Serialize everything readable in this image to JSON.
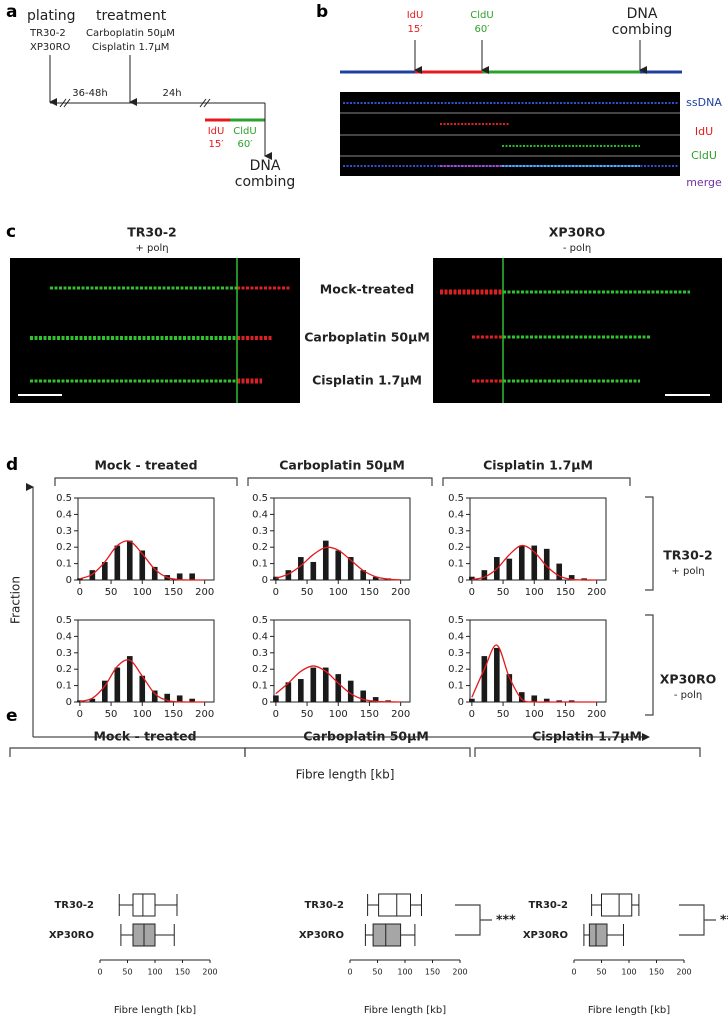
{
  "panel_labels": [
    "a",
    "b",
    "c",
    "d",
    "e"
  ],
  "panel_a": {
    "plating": "plating",
    "cell_lines": [
      "TR30-2",
      "XP30RO"
    ],
    "treatment": "treatment",
    "drugs": [
      "Carboplatin 50μM",
      "Cisplatin 1.7μM"
    ],
    "interval_1": "36-48h",
    "interval_2": "24h",
    "idu": "IdU",
    "idu_time": "15′",
    "cldu": "CldU",
    "cldu_time": "60′",
    "combing": [
      "DNA",
      "combing"
    ]
  },
  "panel_b": {
    "idu": "IdU",
    "idu_time": "15′",
    "cldu": "CldU",
    "cldu_time": "60′",
    "combing": [
      "DNA",
      "combing"
    ],
    "channels": [
      "ssDNA",
      "IdU",
      "CldU",
      "merge"
    ]
  },
  "panel_c": {
    "left_title": "TR30-2",
    "left_sub": "+ polη",
    "right_title": "XP30RO",
    "right_sub": "- polη",
    "conditions": [
      "Mock-treated",
      "Carboplatin 50μM",
      "Cisplatin 1.7μM"
    ]
  },
  "panel_d": {
    "conditions": [
      "Mock - treated",
      "Carboplatin 50μM",
      "Cisplatin 1.7μM"
    ],
    "rows": [
      {
        "title": "TR30-2",
        "sub": "+ polη"
      },
      {
        "title": "XP30RO",
        "sub": "- polη"
      }
    ],
    "y_label": "Fraction",
    "x_label": "Fibre length [kb]"
  },
  "chart_data": [
    {
      "type": "bar",
      "x": [
        0,
        20,
        40,
        60,
        80,
        100,
        120,
        140,
        160,
        180
      ],
      "values": [
        0.01,
        0.06,
        0.11,
        0.21,
        0.24,
        0.18,
        0.08,
        0.03,
        0.04,
        0.04
      ],
      "color": "#1a1a1a",
      "fit": {
        "x": [
          0,
          20,
          40,
          60,
          80,
          100,
          120,
          140,
          160,
          180,
          200
        ],
        "values": [
          0.007,
          0.035,
          0.11,
          0.21,
          0.236,
          0.16,
          0.066,
          0.016,
          0.002,
          0,
          0
        ],
        "color": "#e41a1c"
      },
      "xlim": [
        -3,
        215
      ],
      "ylim": [
        0,
        0.5
      ],
      "xticks": [
        0,
        50,
        100,
        150,
        200
      ],
      "yticks": [
        0,
        0.1,
        0.2,
        0.3,
        0.4,
        0.5
      ]
    },
    {
      "type": "bar",
      "x": [
        0,
        20,
        40,
        60,
        80,
        100,
        120,
        140,
        160,
        180
      ],
      "values": [
        0.02,
        0.06,
        0.14,
        0.11,
        0.24,
        0.18,
        0.14,
        0.06,
        0.02,
        0.01
      ],
      "color": "#1a1a1a",
      "fit": {
        "x": [
          0,
          20,
          40,
          60,
          80,
          100,
          120,
          140,
          160,
          180,
          200
        ],
        "values": [
          0.01,
          0.036,
          0.087,
          0.155,
          0.198,
          0.182,
          0.121,
          0.058,
          0.02,
          0.005,
          0.001
        ],
        "color": "#e41a1c"
      },
      "xlim": [
        -3,
        215
      ],
      "ylim": [
        0,
        0.5
      ],
      "xticks": [
        0,
        50,
        100,
        150,
        200
      ],
      "yticks": [
        0,
        0.1,
        0.2,
        0.3,
        0.4,
        0.5
      ]
    },
    {
      "type": "bar",
      "x": [
        0,
        20,
        40,
        60,
        80,
        100,
        120,
        140,
        160,
        180
      ],
      "values": [
        0.02,
        0.06,
        0.14,
        0.13,
        0.21,
        0.21,
        0.19,
        0.1,
        0.03,
        0.01
      ],
      "color": "#1a1a1a",
      "fit": {
        "x": [
          0,
          20,
          40,
          60,
          80,
          100,
          120,
          140,
          160,
          180,
          200
        ],
        "values": [
          0.003,
          0.018,
          0.068,
          0.154,
          0.21,
          0.171,
          0.084,
          0.025,
          0.004,
          0,
          0
        ],
        "color": "#e41a1c"
      },
      "xlim": [
        -3,
        215
      ],
      "ylim": [
        0,
        0.5
      ],
      "xticks": [
        0,
        50,
        100,
        150,
        200
      ],
      "yticks": [
        0,
        0.1,
        0.2,
        0.3,
        0.4,
        0.5
      ]
    },
    {
      "type": "bar",
      "x": [
        0,
        20,
        40,
        60,
        80,
        100,
        120,
        140,
        160,
        180
      ],
      "values": [
        0.01,
        0.02,
        0.13,
        0.21,
        0.28,
        0.16,
        0.07,
        0.05,
        0.04,
        0.02
      ],
      "color": "#1a1a1a",
      "fit": {
        "x": [
          0,
          20,
          40,
          60,
          80,
          100,
          120,
          140,
          160,
          180,
          200
        ],
        "values": [
          0.003,
          0.023,
          0.098,
          0.217,
          0.255,
          0.158,
          0.051,
          0.009,
          0.001,
          0,
          0
        ],
        "color": "#e41a1c"
      },
      "xlim": [
        -3,
        215
      ],
      "ylim": [
        0,
        0.5
      ],
      "xticks": [
        0,
        50,
        100,
        150,
        200
      ],
      "yticks": [
        0,
        0.1,
        0.2,
        0.3,
        0.4,
        0.5
      ]
    },
    {
      "type": "bar",
      "x": [
        0,
        20,
        40,
        60,
        80,
        100,
        120,
        140,
        160,
        180
      ],
      "values": [
        0.04,
        0.12,
        0.14,
        0.21,
        0.21,
        0.17,
        0.13,
        0.07,
        0.03,
        0.01
      ],
      "color": "#1a1a1a",
      "fit": {
        "x": [
          0,
          20,
          40,
          60,
          80,
          100,
          120,
          140,
          160,
          180,
          200
        ],
        "values": [
          0.051,
          0.115,
          0.187,
          0.22,
          0.187,
          0.115,
          0.051,
          0.016,
          0.004,
          0.001,
          0
        ],
        "color": "#e41a1c"
      },
      "xlim": [
        -3,
        215
      ],
      "ylim": [
        0,
        0.5
      ],
      "xticks": [
        0,
        50,
        100,
        150,
        200
      ],
      "yticks": [
        0,
        0.1,
        0.2,
        0.3,
        0.4,
        0.5
      ]
    },
    {
      "type": "bar",
      "x": [
        0,
        20,
        40,
        60,
        80,
        100,
        120,
        140,
        160,
        180
      ],
      "values": [
        0.02,
        0.28,
        0.33,
        0.17,
        0.06,
        0.04,
        0.02,
        0.01,
        0.01,
        0
      ],
      "color": "#1a1a1a",
      "fit": {
        "x": [
          0,
          20,
          40,
          60,
          80,
          100,
          120,
          140,
          160,
          180,
          200
        ],
        "values": [
          0.029,
          0.2,
          0.347,
          0.151,
          0.017,
          0.001,
          0,
          0,
          0,
          0,
          0
        ],
        "color": "#e41a1c"
      },
      "xlim": [
        -3,
        215
      ],
      "ylim": [
        0,
        0.5
      ],
      "xticks": [
        0,
        50,
        100,
        150,
        200
      ],
      "yticks": [
        0,
        0.1,
        0.2,
        0.3,
        0.4,
        0.5
      ]
    },
    {
      "type": "box",
      "title": "Mock - treated",
      "x_label": "Fibre length [kb]",
      "boxes": [
        {
          "label": "TR30-2",
          "whislo": 35,
          "q1": 60,
          "med": 78,
          "q3": 100,
          "whishi": 140,
          "fill": "#ffffff"
        },
        {
          "label": "XP30RO",
          "whislo": 38,
          "q1": 60,
          "med": 80,
          "q3": 100,
          "whishi": 135,
          "fill": "#a6a6a6"
        }
      ],
      "xlim": [
        0,
        200
      ],
      "xticks": [
        0,
        50,
        100,
        150,
        200
      ]
    },
    {
      "type": "box",
      "title": "Carboplatin 50μM",
      "x_label": "Fibre length [kb]",
      "significance": "***",
      "boxes": [
        {
          "label": "TR30-2",
          "whislo": 32,
          "q1": 52,
          "med": 85,
          "q3": 110,
          "whishi": 130,
          "fill": "#ffffff"
        },
        {
          "label": "XP30RO",
          "whislo": 28,
          "q1": 42,
          "med": 65,
          "q3": 92,
          "whishi": 118,
          "fill": "#a6a6a6"
        }
      ],
      "xlim": [
        0,
        200
      ],
      "xticks": [
        0,
        50,
        100,
        150,
        200
      ]
    },
    {
      "type": "box",
      "title": "Cisplatin 1.7μM",
      "x_label": "Fibre length [kb]",
      "significance": "***",
      "boxes": [
        {
          "label": "TR30-2",
          "whislo": 32,
          "q1": 50,
          "med": 82,
          "q3": 105,
          "whishi": 118,
          "fill": "#ffffff"
        },
        {
          "label": "XP30RO",
          "whislo": 18,
          "q1": 28,
          "med": 40,
          "q3": 60,
          "whishi": 90,
          "fill": "#a6a6a6"
        }
      ],
      "xlim": [
        0,
        200
      ],
      "xticks": [
        0,
        50,
        100,
        150,
        200
      ]
    }
  ]
}
